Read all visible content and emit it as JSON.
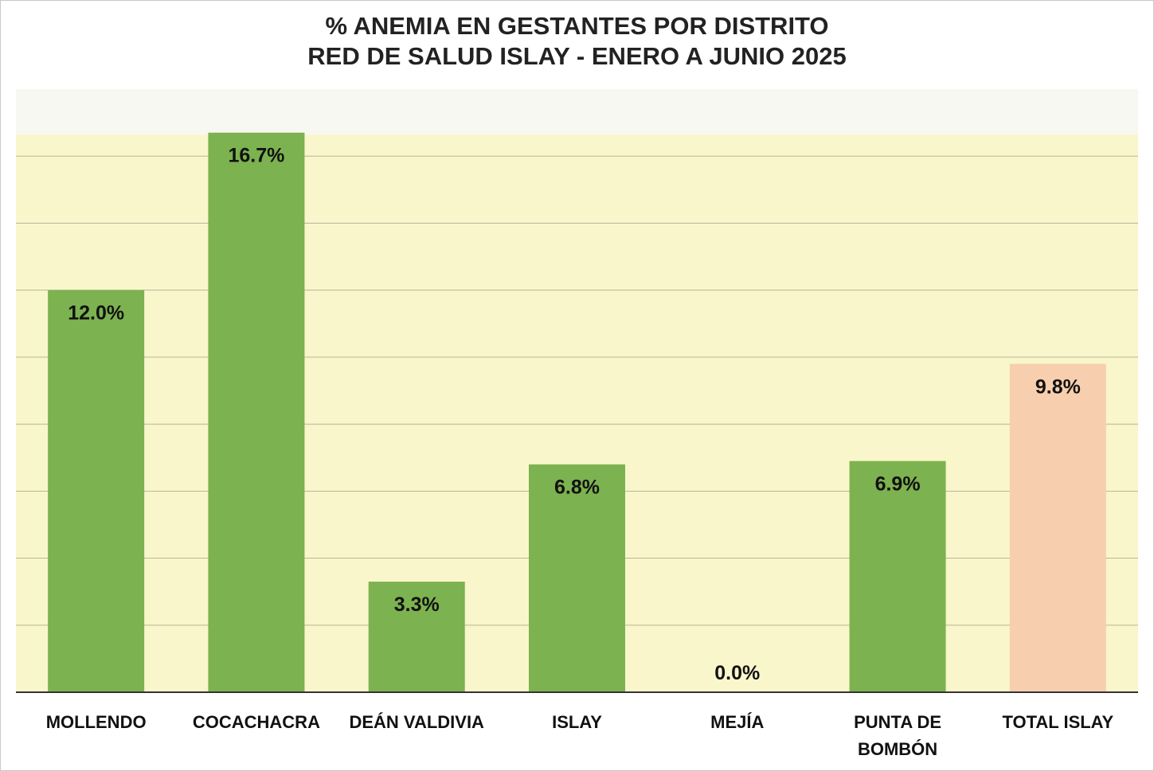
{
  "chart_data": {
    "type": "bar",
    "title": "% ANEMIA EN GESTANTES POR DISTRITO",
    "subtitle": "RED DE SALUD ISLAY - ENERO A JUNIO 2025",
    "categories": [
      [
        "MOLLENDO"
      ],
      [
        "COCACHACRA"
      ],
      [
        "DEÁN VALDIVIA"
      ],
      [
        "ISLAY"
      ],
      [
        "MEJÍA"
      ],
      [
        "PUNTA DE",
        "BOMBÓN"
      ],
      [
        "TOTAL ISLAY"
      ]
    ],
    "values": [
      12.0,
      16.7,
      3.3,
      6.8,
      0.0,
      6.9,
      9.8
    ],
    "value_labels": [
      "12.0%",
      "16.7%",
      "3.3%",
      "6.8%",
      "0.0%",
      "6.9%",
      "9.8%"
    ],
    "bar_colors": [
      "#7cb24f",
      "#7cb24f",
      "#7cb24f",
      "#7cb24f",
      "#7cb24f",
      "#7cb24f",
      "#f8cfae"
    ],
    "plot_background": "#f9f6cb",
    "gridline_color": "#b9b59a",
    "ylim": [
      0,
      18
    ],
    "grid": true,
    "legend": "none"
  }
}
